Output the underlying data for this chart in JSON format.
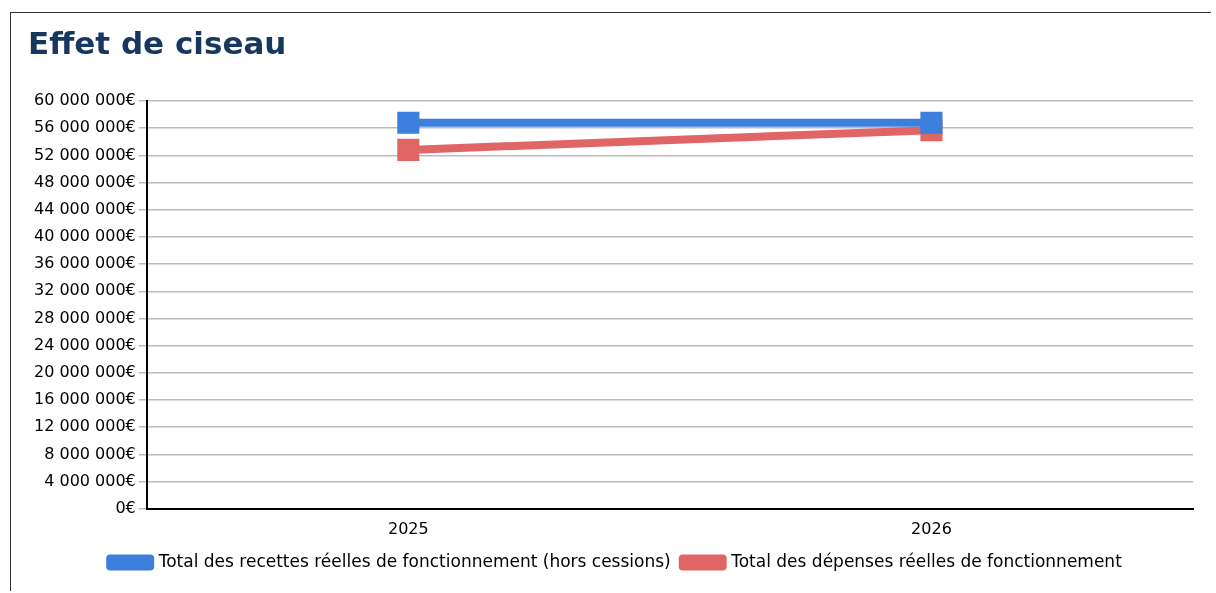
{
  "chart_data": {
    "type": "line",
    "title": "Effet de ciseau",
    "categories": [
      "2025",
      "2026"
    ],
    "series": [
      {
        "name": "Total des recettes réelles de fonctionnement (hors cessions)",
        "color": "#3c7fdc",
        "values": [
          56800000,
          56800000
        ]
      },
      {
        "name": "Total des dépenses réelles de fonctionnement",
        "color": "#e06666",
        "values": [
          52800000,
          55700000
        ]
      }
    ],
    "ylim": [
      0,
      60000000
    ],
    "yticks": [
      {
        "value": 0,
        "label": "0€"
      },
      {
        "value": 4000000,
        "label": "4 000 000€"
      },
      {
        "value": 8000000,
        "label": "8 000 000€"
      },
      {
        "value": 12000000,
        "label": "12 000 000€"
      },
      {
        "value": 16000000,
        "label": "16 000 000€"
      },
      {
        "value": 20000000,
        "label": "20 000 000€"
      },
      {
        "value": 24000000,
        "label": "24 000 000€"
      },
      {
        "value": 28000000,
        "label": "28 000 000€"
      },
      {
        "value": 32000000,
        "label": "32 000 000€"
      },
      {
        "value": 36000000,
        "label": "36 000 000€"
      },
      {
        "value": 40000000,
        "label": "40 000 000€"
      },
      {
        "value": 44000000,
        "label": "44 000 000€"
      },
      {
        "value": 48000000,
        "label": "48 000 000€"
      },
      {
        "value": 52000000,
        "label": "52 000 000€"
      },
      {
        "value": 56000000,
        "label": "56 000 000€"
      },
      {
        "value": 60000000,
        "label": "60 000 000€"
      }
    ],
    "grid": "y",
    "legend": "bottom",
    "marker": "square",
    "line_style": "solid"
  }
}
